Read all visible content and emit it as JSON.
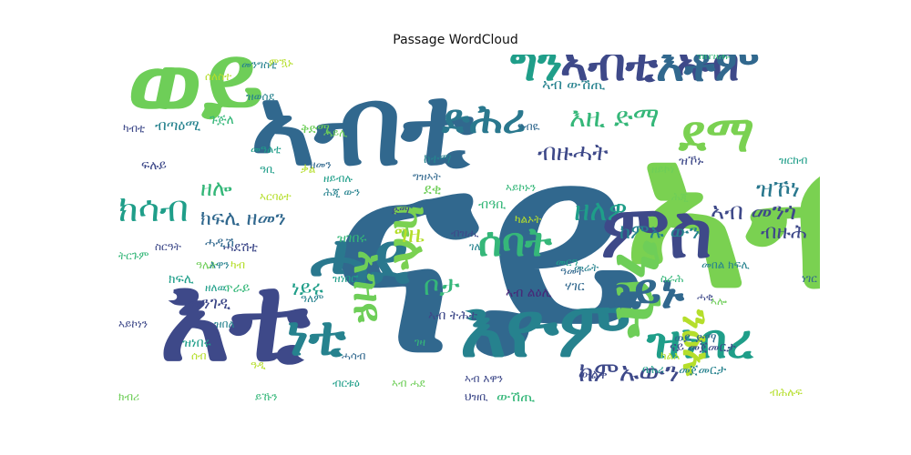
{
  "title": "Passage WordCloud",
  "palette": [
    "#440154",
    "#482878",
    "#3e4989",
    "#31688e",
    "#26828e",
    "#1f9e89",
    "#35b779",
    "#6ece58",
    "#b5de2b",
    "#fde725"
  ],
  "words": [
    {
      "text": "ናይ",
      "color": "#31688e"
    },
    {
      "text": "ኣብ",
      "color": "#7ad151"
    },
    {
      "text": "ናብ",
      "color": "#6ece58"
    },
    {
      "text": "እዩ",
      "color": "#b5de2b"
    },
    {
      "text": "እቲ",
      "color": "#3e4989"
    },
    {
      "text": "ኣብቲ",
      "color": "#31688e"
    },
    {
      "text": "ወይ",
      "color": "#6ece58"
    },
    {
      "text": "ሓደ",
      "color": "#2a788e"
    },
    {
      "text": "እዮም",
      "color": "#26828e"
    },
    {
      "text": "ምስ",
      "color": "#3e4989"
    },
    {
      "text": "ንሱ",
      "color": "#6ece58"
    },
    {
      "text": "ግን",
      "color": "#1f9e89"
    },
    {
      "text": "ኣብቲ ኣብ",
      "color": "#3e4989"
    },
    {
      "text": "እቶም",
      "color": "#31688e"
    },
    {
      "text": "ዝነበረ",
      "color": "#1f9e89"
    },
    {
      "text": "ኮይኑ",
      "color": "#31688e"
    },
    {
      "text": "ክሳብ",
      "color": "#1f9e89"
    },
    {
      "text": "ነቲ",
      "color": "#26828e"
    },
    {
      "text": "ድሕሪ",
      "color": "#2a788e"
    },
    {
      "text": "ሰባት",
      "color": "#35b779"
    },
    {
      "text": "ከምኡውን",
      "color": "#3e4989"
    },
    {
      "text": "ኩሉ",
      "color": "#7ad151"
    },
    {
      "text": "ዘለዎ",
      "color": "#1f9e89"
    },
    {
      "text": "ቦታ",
      "color": "#35b779"
    },
    {
      "text": "ክልተ",
      "color": "#3e4989"
    },
    {
      "text": "ንዕኡ",
      "color": "#b5de2b"
    },
    {
      "text": "ደማ",
      "color": "#7ad151"
    },
    {
      "text": "እዚ ድማ",
      "color": "#35b779"
    },
    {
      "text": "ኣብ መንጎ",
      "color": "#3e4989"
    },
    {
      "text": "ክፍሊ ዘመን",
      "color": "#31688e"
    },
    {
      "text": "ብዙሕ",
      "color": "#3e4989"
    },
    {
      "text": "ዝኾነ",
      "color": "#2a788e"
    },
    {
      "text": "ኣዝዩ",
      "color": "#6ece58"
    },
    {
      "text": "ነገር",
      "color": "#31688e"
    },
    {
      "text": "ዘሎ",
      "color": "#35b779"
    },
    {
      "text": "ግዜ",
      "color": "#b5de2b"
    },
    {
      "text": "ከምኡ ውን",
      "color": "#26828e"
    },
    {
      "text": "ነይሩ",
      "color": "#1f9e89"
    },
    {
      "text": "ድማ",
      "color": "#3e4989"
    },
    {
      "text": "ብዙሓት",
      "color": "#3e4989"
    },
    {
      "text": "ሰለስተ",
      "color": "#b5de2b"
    },
    {
      "text": "መንግስቲ",
      "color": "#26828e"
    },
    {
      "text": "ዓመት",
      "color": "#31688e"
    },
    {
      "text": "ክፍሊ",
      "color": "#1f9e89"
    },
    {
      "text": "ካብቲ",
      "color": "#3e4989"
    },
    {
      "text": "ጉጅለ",
      "color": "#35b779"
    },
    {
      "text": "ፍሉይ",
      "color": "#3e4989"
    },
    {
      "text": "ኣብ ውሽጢ",
      "color": "#26828e"
    },
    {
      "text": "ዝርከብ",
      "color": "#1f9e89"
    },
    {
      "text": "ሕጂ",
      "color": "#6ece58"
    },
    {
      "text": "ዝበዝሑ",
      "color": "#35b779"
    },
    {
      "text": "መበል ክፍሊ",
      "color": "#26828e"
    },
    {
      "text": "ባሕሪ",
      "color": "#1f9e89"
    },
    {
      "text": "ውሽጢ",
      "color": "#35b779"
    },
    {
      "text": "ሓደሽቲ",
      "color": "#3e4989"
    },
    {
      "text": "ዓሌት",
      "color": "#6ece58"
    },
    {
      "text": "ካልእ",
      "color": "#b5de2b"
    },
    {
      "text": "ኣብ እዋን",
      "color": "#3e4989"
    },
    {
      "text": "ኣብ ልዕሊ",
      "color": "#482878"
    },
    {
      "text": "ሃገር",
      "color": "#31688e"
    },
    {
      "text": "እዋን",
      "color": "#26828e"
    },
    {
      "text": "ብዓቢ",
      "color": "#35b779"
    },
    {
      "text": "ሓዲሽ",
      "color": "#31688e"
    },
    {
      "text": "ዝኾኑ",
      "color": "#3e4989"
    },
    {
      "text": "ኣብ ትሕቲ",
      "color": "#3e4989"
    },
    {
      "text": "ከተማ",
      "color": "#26828e"
    },
    {
      "text": "መንገዲ",
      "color": "#3e4989"
    },
    {
      "text": "ዝነበሩ",
      "color": "#1f9e89"
    },
    {
      "text": "ዝበለ",
      "color": "#26828e"
    },
    {
      "text": "ኣብ ሓደ",
      "color": "#6ece58"
    },
    {
      "text": "ዝገበሩ",
      "color": "#35b779"
    },
    {
      "text": "ኣይኮነን",
      "color": "#3e4989"
    },
    {
      "text": "መርዓ",
      "color": "#1f9e89"
    },
    {
      "text": "ጥራይ",
      "color": "#35b779"
    },
    {
      "text": "ወይ ድማ",
      "color": "#31688e"
    },
    {
      "text": "ዘለዉ",
      "color": "#1f9e89"
    },
    {
      "text": "ዓዲ",
      "color": "#b5de2b"
    },
    {
      "text": "ቅድሚ",
      "color": "#6ece58"
    },
    {
      "text": "ቃል",
      "color": "#b5de2b"
    },
    {
      "text": "መሬት",
      "color": "#26828e"
    },
    {
      "text": "ሓቂ",
      "color": "#3e4989"
    },
    {
      "text": "ትርጉም",
      "color": "#35b779"
    },
    {
      "text": "ብጣዕሚ",
      "color": "#26828e"
    },
    {
      "text": "ዓብዪ",
      "color": "#31688e"
    },
    {
      "text": "ካብ",
      "color": "#b5de2b"
    },
    {
      "text": "ክብሪ",
      "color": "#6ece58"
    },
    {
      "text": "መዓልቲ",
      "color": "#1f9e89"
    },
    {
      "text": "ዓለም",
      "color": "#26828e"
    },
    {
      "text": "ገዛ",
      "color": "#35b779"
    },
    {
      "text": "ኣርባዕተ",
      "color": "#b5de2b"
    },
    {
      "text": "ውልቀ",
      "color": "#3e4989"
    },
    {
      "text": "ሓሳብ",
      "color": "#31688e"
    },
    {
      "text": "መጀመርታ",
      "color": "#26828e"
    },
    {
      "text": "ዝነበሮ",
      "color": "#1f9e89"
    },
    {
      "text": "ደቂ",
      "color": "#6ece58"
    },
    {
      "text": "ስርዓት",
      "color": "#3e4989"
    },
    {
      "text": "ኣይኮኑን",
      "color": "#35b779"
    },
    {
      "text": "ሰብ",
      "color": "#b5de2b"
    },
    {
      "text": "ገለ",
      "color": "#26828e"
    },
    {
      "text": "ዘይብሉ",
      "color": "#1f9e89"
    },
    {
      "text": "ናይ መጀመርታ",
      "color": "#3e4989"
    },
    {
      "text": "ኣሎ",
      "color": "#6ece58"
    },
    {
      "text": "ግዝኣት",
      "color": "#31688e"
    },
    {
      "text": "ስራሕ",
      "color": "#35b779"
    },
    {
      "text": "ካልኦት",
      "color": "#b5de2b"
    },
    {
      "text": "ብዝሒ",
      "color": "#3e4989"
    },
    {
      "text": "ዓቢ",
      "color": "#1f9e89"
    },
    {
      "text": "ዝወሰደ",
      "color": "#26828e"
    },
    {
      "text": "ሓይሊ",
      "color": "#6ece58"
    },
    {
      "text": "ምዃኑ",
      "color": "#b5de2b"
    },
    {
      "text": "ህዝቢ",
      "color": "#3e4989"
    },
    {
      "text": "ይኹን",
      "color": "#35b779"
    },
    {
      "text": "ዘመን",
      "color": "#31688e"
    },
    {
      "text": "ሕጂ ውን",
      "color": "#26828e"
    },
    {
      "text": "ብርቱዕ",
      "color": "#1f9e89"
    },
    {
      "text": "ዘይኮነ",
      "color": "#6ece58"
    },
    {
      "text": "ብሕሉፍ",
      "color": "#b5de2b"
    }
  ]
}
